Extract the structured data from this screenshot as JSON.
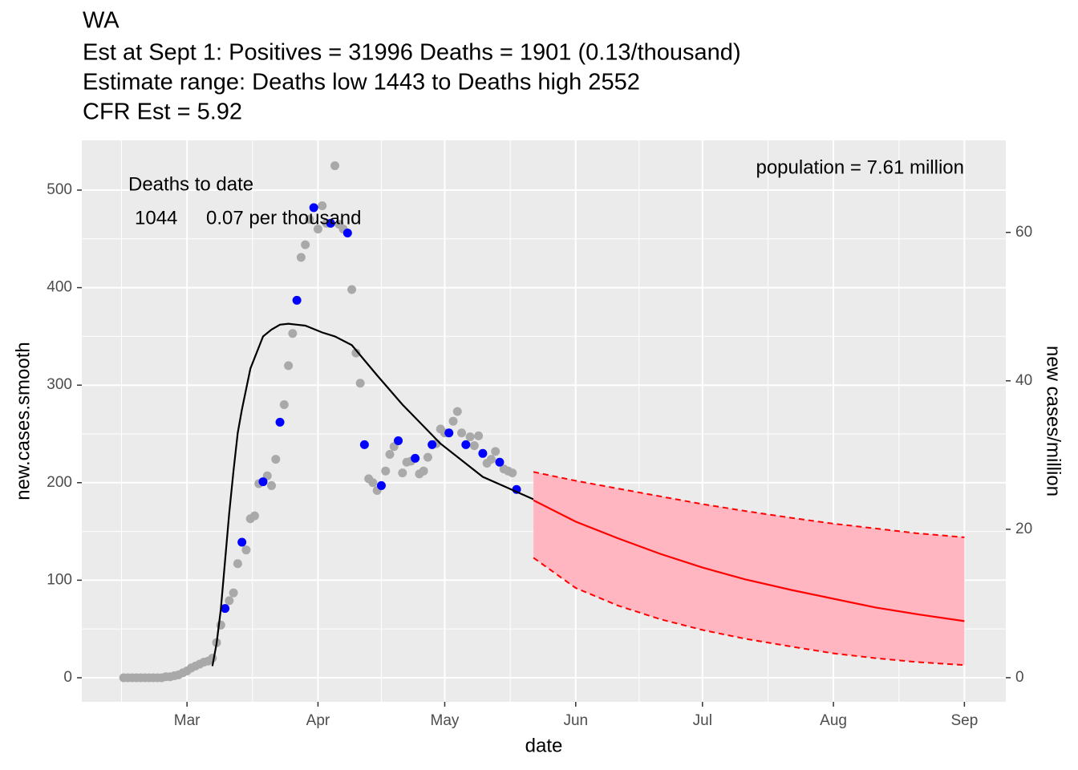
{
  "chart_data": {
    "type": "scatter",
    "title": "WA",
    "subtitle": [
      "Est at Sept 1: Positives = 31996 Deaths = 1901 (0.13/thousand)",
      "Estimate range: Deaths low 1443 to Deaths high 2552",
      "CFR Est = 5.92"
    ],
    "annotations": [
      "Deaths to date",
      "1044",
      "0.07 per thousand",
      "population = 7.61 million"
    ],
    "x_label": "date",
    "y_label": "new.cases.smooth",
    "y2_label": "new cases/million",
    "xlim": [
      -24.9,
      193.8
    ],
    "xticks": [
      {
        "value": 0,
        "label": "Mar"
      },
      {
        "value": 31,
        "label": "Apr"
      },
      {
        "value": 61,
        "label": "May"
      },
      {
        "value": 92,
        "label": "Jun"
      },
      {
        "value": 122,
        "label": "Jul"
      },
      {
        "value": 153,
        "label": "Aug"
      },
      {
        "value": 184,
        "label": "Sep"
      }
    ],
    "ylim": [
      -24.7,
      551
    ],
    "yticks": [
      0,
      100,
      200,
      300,
      400,
      500
    ],
    "y2lim": [
      -3.25,
      72.4
    ],
    "y2ticks": [
      0,
      20,
      40,
      60
    ],
    "grid": true,
    "series": [
      {
        "type": "points",
        "color": "#a9a9a9",
        "x": [
          -15,
          -14,
          -13,
          -12,
          -11,
          -10,
          -9,
          -8,
          -7,
          -6,
          -5,
          -4,
          -3,
          -2,
          -1,
          0,
          1,
          2,
          3,
          4,
          5,
          6,
          7,
          8,
          10,
          11,
          12,
          14,
          15,
          16,
          17,
          19,
          20,
          21,
          23,
          24,
          25,
          27,
          28,
          29,
          31,
          32,
          33,
          35,
          36,
          37,
          39,
          40,
          41,
          43,
          44,
          45,
          47,
          48,
          49,
          51,
          52,
          53,
          55,
          56,
          57,
          59,
          60,
          61,
          63,
          64,
          65,
          67,
          68,
          69,
          71,
          72,
          73,
          75,
          76,
          77
        ],
        "values": [
          0,
          0,
          0,
          0,
          0,
          0,
          0,
          0,
          0,
          0,
          1,
          1,
          2,
          3,
          5,
          7,
          10,
          12,
          14,
          16,
          17,
          20,
          36,
          54,
          79,
          87,
          117,
          131,
          163,
          166,
          199,
          207,
          197,
          224,
          280,
          320,
          353,
          431,
          444,
          470,
          460,
          484,
          466,
          525,
          465,
          460,
          398,
          333,
          302,
          204,
          200,
          192,
          212,
          229,
          237,
          210,
          221,
          222,
          209,
          212,
          226,
          240,
          255,
          251,
          263,
          273,
          251,
          247,
          238,
          248,
          220,
          224,
          232,
          214,
          212,
          210
        ]
      },
      {
        "type": "points",
        "color": "#0000ff",
        "x": [
          9,
          13,
          18,
          22,
          26,
          30,
          34,
          38,
          42,
          46,
          50,
          54,
          58,
          62,
          66,
          70,
          74,
          78
        ],
        "values": [
          71,
          139,
          201,
          262,
          387,
          482,
          466,
          456,
          239,
          197,
          243,
          225,
          239,
          251,
          239,
          230,
          221,
          193
        ]
      },
      {
        "type": "line",
        "color": "#000000",
        "x": [
          6,
          7,
          8,
          9,
          10,
          11,
          12,
          13,
          15,
          18,
          20,
          22,
          24,
          26,
          28,
          32,
          35,
          39,
          45,
          51,
          60,
          70,
          82
        ],
        "values": [
          12,
          35,
          70,
          120,
          169,
          212,
          251,
          275,
          317,
          350,
          357,
          362,
          363,
          362,
          361,
          354,
          350,
          341,
          310,
          280,
          240,
          206,
          183
        ]
      },
      {
        "type": "band",
        "color": "#ff0000",
        "band_color": "#ffb6c1",
        "x": [
          82,
          92,
          102,
          112,
          122,
          132,
          143,
          153,
          163,
          173,
          184
        ],
        "values": [
          182,
          160,
          143,
          127,
          113,
          101,
          90,
          81,
          72,
          65,
          58
        ],
        "high": [
          211,
          202,
          194,
          186,
          178,
          171,
          164,
          158,
          153,
          148,
          144
        ],
        "low": [
          123,
          92,
          74,
          60,
          49,
          40,
          32,
          25,
          20,
          16,
          13
        ]
      }
    ]
  }
}
